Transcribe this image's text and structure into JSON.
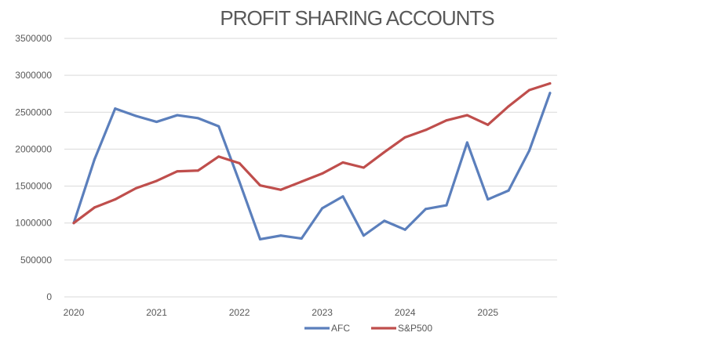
{
  "chart_data": {
    "type": "line",
    "title": "PROFIT  SHARING ACCOUNTS",
    "xlabel": "",
    "ylabel": "",
    "ylim": [
      0,
      3500000
    ],
    "y_ticks": [
      "0",
      "500000",
      "1000000",
      "1500000",
      "2000000",
      "2500000",
      "3000000",
      "3500000"
    ],
    "x_tick_labels": [
      "2020",
      "2021",
      "2022",
      "2023",
      "2024",
      "2025"
    ],
    "x": [
      2020.0,
      2020.25,
      2020.5,
      2020.75,
      2021.0,
      2021.25,
      2021.5,
      2021.75,
      2022.0,
      2022.25,
      2022.5,
      2022.75,
      2023.0,
      2023.25,
      2023.5,
      2023.75,
      2024.0,
      2024.25,
      2024.5,
      2024.75,
      2025.0,
      2025.25,
      2025.5,
      2025.75
    ],
    "grid": true,
    "legend_position": "bottom",
    "series": [
      {
        "name": "AFC",
        "color": "#5b7fbc",
        "values": [
          1000000,
          1860000,
          2550000,
          2450000,
          2370000,
          2460000,
          2420000,
          2310000,
          1560000,
          780000,
          830000,
          790000,
          1200000,
          1360000,
          830000,
          1030000,
          910000,
          1190000,
          1240000,
          2090000,
          1320000,
          1440000,
          1980000,
          2760000
        ]
      },
      {
        "name": "S&P500",
        "color": "#bf4e4c",
        "values": [
          1000000,
          1210000,
          1320000,
          1470000,
          1570000,
          1700000,
          1710000,
          1900000,
          1810000,
          1510000,
          1450000,
          1560000,
          1670000,
          1820000,
          1750000,
          1960000,
          2160000,
          2260000,
          2390000,
          2460000,
          2330000,
          2580000,
          2800000,
          2890000
        ]
      }
    ]
  }
}
